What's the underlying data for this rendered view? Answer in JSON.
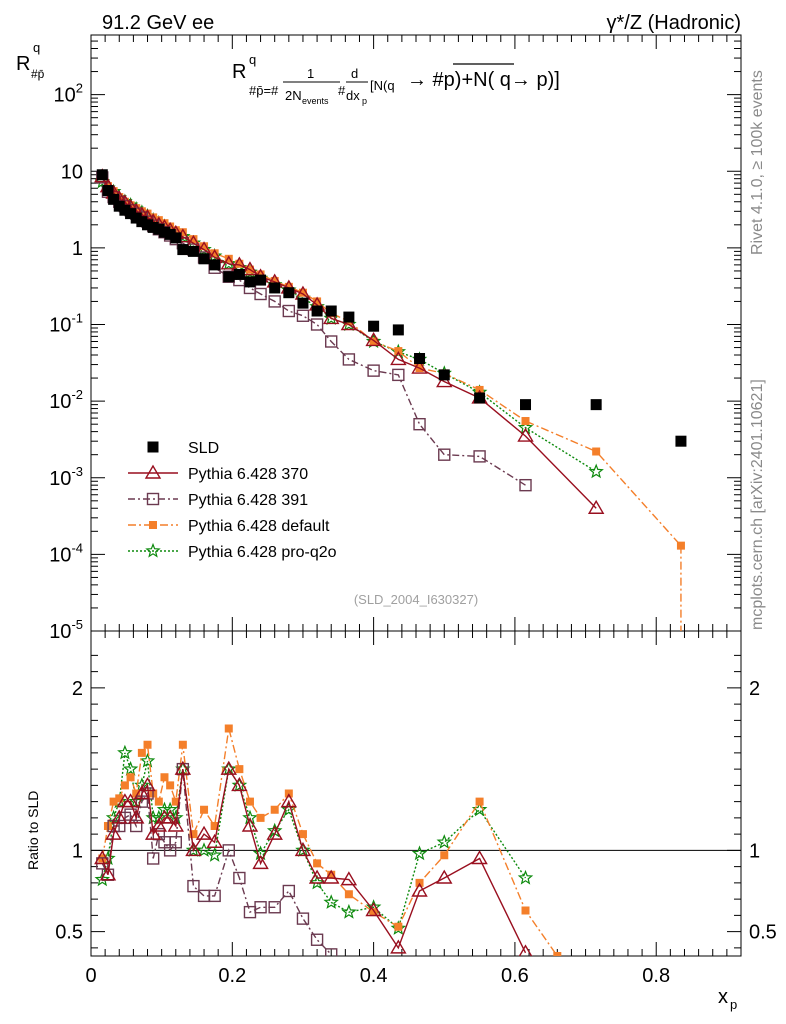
{
  "header": {
    "energy": "91.2 GeV ee",
    "process": "γ*/Z (Hadronic)",
    "rivet": "Rivet 4.1.0, ≥ 100k events",
    "mcplots": "mcplots.cern.ch [arXiv:2401.10621]",
    "analysis": "(SLD_2004_I630327)"
  },
  "colors": {
    "data": "#000000",
    "p370": "#990f1f",
    "p391": "#6b3a50",
    "pdefault": "#f47f2a",
    "pq2o": "#0d8a0d"
  },
  "chart_data": [
    {
      "type": "scatter",
      "panel": "main",
      "title": "R^q_{#p̄} = 1/(2N_events) d/dx_p [N(q → #p) + N(q̄ → p)]",
      "ylabel": "R^q_{#p̄}",
      "xlabel": "x_p",
      "xlim": [
        0,
        0.92
      ],
      "ylim": [
        1e-05,
        600
      ],
      "yscale": "log",
      "ytick_labels": [
        "10^-5",
        "10^-4",
        "10^-3",
        "10^-2",
        "10^-1",
        "1",
        "10",
        "10^2"
      ],
      "xtick_labels": [
        "0",
        "0.2",
        "0.4",
        "0.6",
        "0.8"
      ],
      "legend": [
        {
          "label": "SLD",
          "series": "data"
        },
        {
          "label": "Pythia 6.428 370",
          "series": "p370"
        },
        {
          "label": "Pythia 6.428 391",
          "series": "p391"
        },
        {
          "label": "Pythia 6.428 default",
          "series": "pdefault"
        },
        {
          "label": "Pythia 6.428 pro-q2o",
          "series": "pq2o"
        }
      ],
      "series": [
        {
          "key": "data",
          "name": "SLD",
          "x": [
            0.016,
            0.024,
            0.032,
            0.04,
            0.048,
            0.056,
            0.064,
            0.072,
            0.08,
            0.088,
            0.096,
            0.104,
            0.112,
            0.12,
            0.13,
            0.145,
            0.16,
            0.175,
            0.195,
            0.21,
            0.225,
            0.24,
            0.26,
            0.28,
            0.3,
            0.32,
            0.34,
            0.365,
            0.4,
            0.435,
            0.465,
            0.5,
            0.55,
            0.615,
            0.715,
            0.835
          ],
          "y": [
            9.0,
            5.6,
            4.3,
            3.5,
            3.1,
            2.8,
            2.45,
            2.2,
            2.0,
            1.85,
            1.75,
            1.6,
            1.5,
            1.35,
            0.95,
            0.9,
            0.72,
            0.6,
            0.42,
            0.45,
            0.36,
            0.38,
            0.3,
            0.26,
            0.19,
            0.15,
            0.15,
            0.125,
            0.095,
            0.085,
            0.036,
            0.022,
            0.011,
            0.009,
            0.009,
            0.003
          ]
        },
        {
          "key": "p370",
          "name": "Pythia 6.428 370",
          "x": [
            0.016,
            0.024,
            0.032,
            0.04,
            0.048,
            0.056,
            0.064,
            0.072,
            0.08,
            0.088,
            0.096,
            0.104,
            0.112,
            0.12,
            0.13,
            0.145,
            0.16,
            0.175,
            0.195,
            0.21,
            0.225,
            0.24,
            0.26,
            0.28,
            0.3,
            0.32,
            0.34,
            0.365,
            0.4,
            0.435,
            0.465,
            0.5,
            0.55,
            0.615,
            0.715
          ],
          "y": [
            8.5,
            6.3,
            5.2,
            4.4,
            3.9,
            3.4,
            3.0,
            2.7,
            2.5,
            2.2,
            2.0,
            1.85,
            1.7,
            1.55,
            1.4,
            1.15,
            0.95,
            0.75,
            0.62,
            0.6,
            0.52,
            0.42,
            0.36,
            0.3,
            0.25,
            0.18,
            0.12,
            0.1,
            0.062,
            0.035,
            0.027,
            0.018,
            0.011,
            0.0035,
            0.0004
          ]
        },
        {
          "key": "p391",
          "name": "Pythia 6.428 391",
          "x": [
            0.016,
            0.024,
            0.032,
            0.04,
            0.048,
            0.056,
            0.064,
            0.072,
            0.08,
            0.088,
            0.096,
            0.104,
            0.112,
            0.12,
            0.13,
            0.145,
            0.16,
            0.175,
            0.195,
            0.21,
            0.225,
            0.24,
            0.26,
            0.28,
            0.3,
            0.32,
            0.34,
            0.365,
            0.4,
            0.435,
            0.465,
            0.5,
            0.55,
            0.615
          ],
          "y": [
            8.3,
            5.4,
            4.6,
            4.0,
            3.5,
            3.1,
            2.8,
            2.5,
            2.2,
            1.95,
            1.75,
            1.6,
            1.45,
            1.3,
            1.15,
            0.95,
            0.75,
            0.55,
            0.42,
            0.38,
            0.3,
            0.25,
            0.2,
            0.15,
            0.13,
            0.1,
            0.06,
            0.035,
            0.025,
            0.022,
            0.005,
            0.002,
            0.0019,
            0.0008
          ]
        },
        {
          "key": "pdefault",
          "name": "Pythia 6.428 default",
          "x": [
            0.016,
            0.024,
            0.032,
            0.04,
            0.048,
            0.056,
            0.064,
            0.072,
            0.08,
            0.088,
            0.096,
            0.104,
            0.112,
            0.12,
            0.13,
            0.145,
            0.16,
            0.175,
            0.195,
            0.21,
            0.225,
            0.24,
            0.26,
            0.28,
            0.3,
            0.32,
            0.34,
            0.365,
            0.4,
            0.435,
            0.465,
            0.5,
            0.55,
            0.615,
            0.715,
            0.835
          ],
          "y": [
            8.6,
            6.4,
            5.5,
            4.6,
            4.0,
            3.6,
            3.3,
            3.0,
            2.8,
            2.5,
            2.3,
            2.1,
            1.9,
            1.7,
            1.6,
            1.3,
            1.05,
            0.85,
            0.72,
            0.62,
            0.52,
            0.45,
            0.37,
            0.31,
            0.26,
            0.2,
            0.14,
            0.11,
            0.06,
            0.045,
            0.027,
            0.023,
            0.014,
            0.0055,
            0.0022,
            0.00013
          ]
        },
        {
          "key": "pq2o",
          "name": "Pythia 6.428 pro-q2o",
          "x": [
            0.016,
            0.024,
            0.032,
            0.04,
            0.048,
            0.056,
            0.064,
            0.072,
            0.08,
            0.088,
            0.096,
            0.104,
            0.112,
            0.12,
            0.13,
            0.145,
            0.16,
            0.175,
            0.195,
            0.21,
            0.225,
            0.24,
            0.26,
            0.28,
            0.3,
            0.32,
            0.34,
            0.365,
            0.4,
            0.435,
            0.465,
            0.5,
            0.55,
            0.615,
            0.715
          ],
          "y": [
            7.3,
            6.0,
            5.4,
            4.5,
            4.0,
            3.6,
            3.2,
            2.9,
            2.6,
            2.3,
            2.1,
            1.9,
            1.7,
            1.55,
            1.4,
            1.15,
            0.95,
            0.78,
            0.62,
            0.55,
            0.48,
            0.4,
            0.33,
            0.28,
            0.22,
            0.17,
            0.12,
            0.1,
            0.06,
            0.044,
            0.035,
            0.023,
            0.013,
            0.0045,
            0.0012
          ]
        }
      ]
    },
    {
      "type": "scatter",
      "panel": "ratio",
      "ylabel": "Ratio to SLD",
      "xlabel": "x_p",
      "xlim": [
        0,
        0.92
      ],
      "ylim": [
        0.35,
        2.35
      ],
      "ytick_labels": [
        "0.5",
        "1",
        "2"
      ],
      "xtick_labels": [
        "0",
        "0.2",
        "0.4",
        "0.6",
        "0.8"
      ],
      "reference_line": 1,
      "series": [
        {
          "key": "p370",
          "name": "Pythia 6.428 370",
          "x": [
            0.016,
            0.024,
            0.032,
            0.04,
            0.048,
            0.056,
            0.064,
            0.072,
            0.08,
            0.088,
            0.096,
            0.104,
            0.112,
            0.12,
            0.13,
            0.145,
            0.16,
            0.175,
            0.195,
            0.21,
            0.225,
            0.24,
            0.26,
            0.28,
            0.3,
            0.32,
            0.34,
            0.365,
            0.4,
            0.435,
            0.465,
            0.5,
            0.55,
            0.615
          ],
          "y": [
            0.95,
            0.85,
            1.1,
            1.2,
            1.3,
            1.3,
            1.2,
            1.35,
            1.4,
            1.1,
            1.15,
            1.2,
            1.2,
            1.15,
            1.5,
            1.0,
            1.1,
            1.05,
            1.5,
            1.4,
            1.15,
            0.92,
            1.1,
            1.3,
            1.0,
            0.83,
            0.83,
            0.82,
            0.63,
            0.4,
            0.75,
            0.83,
            0.95,
            0.37
          ]
        },
        {
          "key": "p391",
          "name": "Pythia 6.428 391",
          "x": [
            0.016,
            0.024,
            0.032,
            0.04,
            0.048,
            0.056,
            0.064,
            0.072,
            0.08,
            0.088,
            0.096,
            0.104,
            0.112,
            0.12,
            0.13,
            0.145,
            0.16,
            0.175,
            0.195,
            0.21,
            0.225,
            0.24,
            0.26,
            0.28,
            0.3,
            0.32,
            0.34
          ],
          "y": [
            0.92,
            0.85,
            1.15,
            1.15,
            1.2,
            1.22,
            1.15,
            1.3,
            1.35,
            0.95,
            1.1,
            1.05,
            1.0,
            1.05,
            1.5,
            0.78,
            0.72,
            0.72,
            1.0,
            0.83,
            0.62,
            0.65,
            0.65,
            0.75,
            0.58,
            0.45,
            0.36
          ]
        },
        {
          "key": "pdefault",
          "name": "Pythia 6.428 default",
          "x": [
            0.016,
            0.024,
            0.032,
            0.04,
            0.048,
            0.056,
            0.064,
            0.072,
            0.08,
            0.088,
            0.096,
            0.104,
            0.112,
            0.12,
            0.13,
            0.145,
            0.16,
            0.175,
            0.195,
            0.21,
            0.225,
            0.24,
            0.26,
            0.28,
            0.3,
            0.32,
            0.34,
            0.365,
            0.4,
            0.435,
            0.465,
            0.5,
            0.55,
            0.615,
            0.66
          ],
          "y": [
            0.95,
            1.15,
            1.3,
            1.32,
            1.4,
            1.45,
            1.35,
            1.6,
            1.65,
            1.35,
            1.3,
            1.45,
            1.4,
            1.3,
            1.65,
            1.1,
            1.25,
            1.15,
            1.75,
            1.5,
            1.3,
            1.2,
            1.25,
            1.35,
            1.1,
            0.92,
            0.85,
            0.73,
            0.62,
            0.53,
            0.8,
            0.97,
            1.3,
            0.63,
            0.35
          ]
        },
        {
          "key": "pq2o",
          "name": "Pythia 6.428 pro-q2o",
          "x": [
            0.016,
            0.024,
            0.032,
            0.04,
            0.048,
            0.056,
            0.064,
            0.072,
            0.08,
            0.088,
            0.096,
            0.104,
            0.112,
            0.12,
            0.13,
            0.145,
            0.16,
            0.175,
            0.195,
            0.21,
            0.225,
            0.24,
            0.26,
            0.28,
            0.3,
            0.32,
            0.34,
            0.365,
            0.4,
            0.435,
            0.465,
            0.5,
            0.55,
            0.615
          ],
          "y": [
            0.82,
            0.95,
            1.2,
            1.3,
            1.6,
            1.5,
            1.3,
            1.4,
            1.55,
            1.2,
            1.2,
            1.25,
            1.25,
            1.2,
            1.5,
            1.0,
            1.0,
            0.97,
            1.5,
            1.4,
            1.2,
            0.98,
            1.12,
            1.25,
            1.0,
            0.8,
            0.68,
            0.62,
            0.65,
            0.52,
            0.98,
            1.05,
            1.25,
            0.83
          ]
        }
      ]
    }
  ]
}
